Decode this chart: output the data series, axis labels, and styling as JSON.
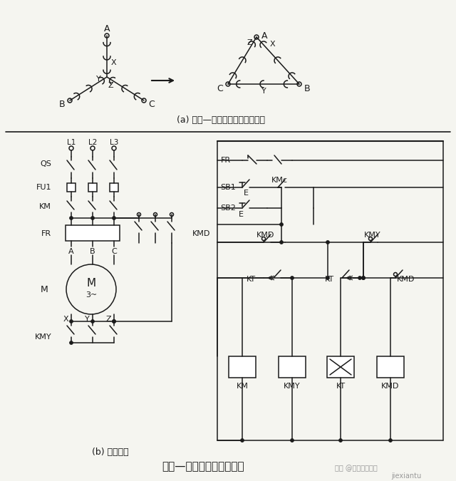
{
  "title": "星形—三角形启动控制线路",
  "subtitle_a": "(a) 星形—三角形转换绕组连接图",
  "subtitle_b": "(b) 控制线路",
  "watermark": "头条 @机械智能制造",
  "watermark2": "jiexiantu",
  "lc": "#1a1a1a",
  "bg": "#f5f5f0"
}
